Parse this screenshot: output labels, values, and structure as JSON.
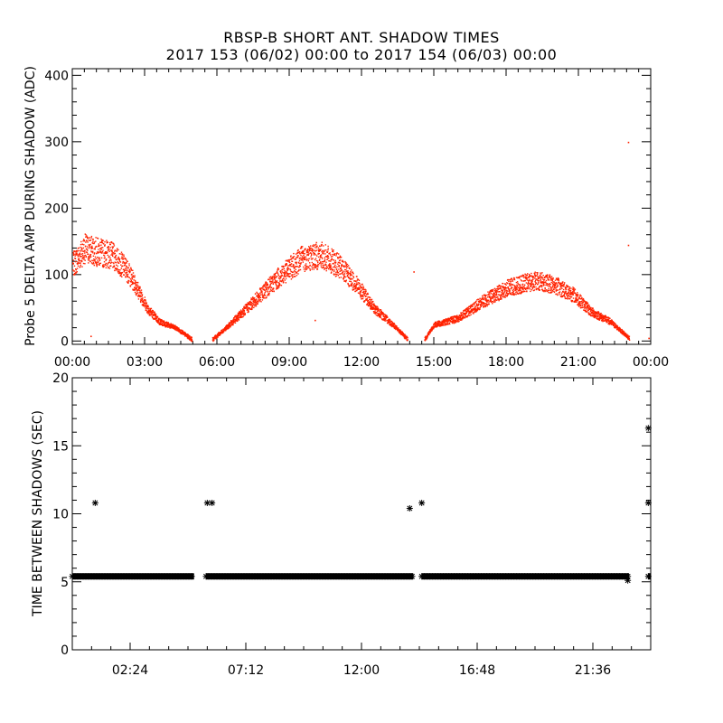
{
  "title": "RBSP-B SHORT ANT. SHADOW TIMES",
  "subtitle": "2017 153 (06/02) 00:00 to 2017 154 (06/03) 00:00",
  "chart_data": [
    {
      "type": "scatter",
      "ylabel": "Probe 5 DELTA AMP DURING SHADOW (ADC)",
      "xlabel": "",
      "xlim_hours": [
        0,
        24
      ],
      "ylim": [
        -5,
        410
      ],
      "xticks": [
        "00:00",
        "03:00",
        "06:00",
        "09:00",
        "12:00",
        "15:00",
        "18:00",
        "21:00",
        "00:00"
      ],
      "yticks": [
        "0",
        "100",
        "200",
        "300",
        "400"
      ],
      "marker_color": "#ff2200",
      "segments": [
        {
          "name": "",
          "start_h": 0.0,
          "end_h": 4.95,
          "profile": [
            [
              0.0,
              115
            ],
            [
              0.5,
              140
            ],
            [
              1.0,
              135
            ],
            [
              1.6,
              130
            ],
            [
              2.2,
              110
            ],
            [
              2.6,
              85
            ],
            [
              3.1,
              50
            ],
            [
              3.6,
              30
            ],
            [
              4.3,
              20
            ],
            [
              4.95,
              3
            ]
          ]
        },
        {
          "name": "",
          "start_h": 5.8,
          "end_h": 13.9,
          "profile": [
            [
              5.8,
              3
            ],
            [
              6.5,
              25
            ],
            [
              7.5,
              60
            ],
            [
              8.5,
              95
            ],
            [
              9.5,
              125
            ],
            [
              10.3,
              130
            ],
            [
              11.0,
              115
            ],
            [
              11.8,
              85
            ],
            [
              12.5,
              50
            ],
            [
              13.3,
              25
            ],
            [
              13.9,
              3
            ]
          ]
        },
        {
          "name": "",
          "start_h": 14.6,
          "end_h": 23.1,
          "profile": [
            [
              14.6,
              3
            ],
            [
              15.0,
              25
            ],
            [
              16.0,
              35
            ],
            [
              17.0,
              60
            ],
            [
              18.0,
              80
            ],
            [
              19.2,
              92
            ],
            [
              20.0,
              85
            ],
            [
              20.8,
              70
            ],
            [
              21.5,
              45
            ],
            [
              22.3,
              30
            ],
            [
              23.1,
              5
            ]
          ]
        }
      ],
      "outliers": [
        {
          "x": 23.05,
          "y": 300
        },
        {
          "x": 23.05,
          "y": 145
        },
        {
          "x": 14.15,
          "y": 105
        },
        {
          "x": 10.05,
          "y": 32
        },
        {
          "x": 23.9,
          "y": 5
        },
        {
          "x": 0.75,
          "y": 8
        }
      ]
    },
    {
      "type": "scatter",
      "ylabel": "TIME BETWEEN SHADOWS (SEC)",
      "xlabel": "",
      "xlim_hours": [
        0,
        24
      ],
      "ylim": [
        0,
        20
      ],
      "xticks": [
        "02:24",
        "07:12",
        "12:00",
        "16:48",
        "21:36"
      ],
      "yticks": [
        "0",
        "5",
        "10",
        "15",
        "20"
      ],
      "marker_color": "#000000",
      "marker": "*",
      "bands": [
        {
          "start_h": 0.0,
          "end_h": 5.05,
          "y": 5.4
        },
        {
          "start_h": 5.55,
          "end_h": 14.15,
          "y": 5.4
        },
        {
          "start_h": 14.5,
          "end_h": 23.1,
          "y": 5.4
        },
        {
          "start_h": 23.9,
          "end_h": 24.0,
          "y": 5.4
        }
      ],
      "points": [
        {
          "x": 0.95,
          "y": 10.8
        },
        {
          "x": 5.6,
          "y": 10.8
        },
        {
          "x": 5.8,
          "y": 10.8
        },
        {
          "x": 14.0,
          "y": 10.4
        },
        {
          "x": 14.5,
          "y": 10.8
        },
        {
          "x": 23.9,
          "y": 10.8
        },
        {
          "x": 23.9,
          "y": 16.3
        },
        {
          "x": 23.05,
          "y": 5.1
        }
      ]
    }
  ]
}
